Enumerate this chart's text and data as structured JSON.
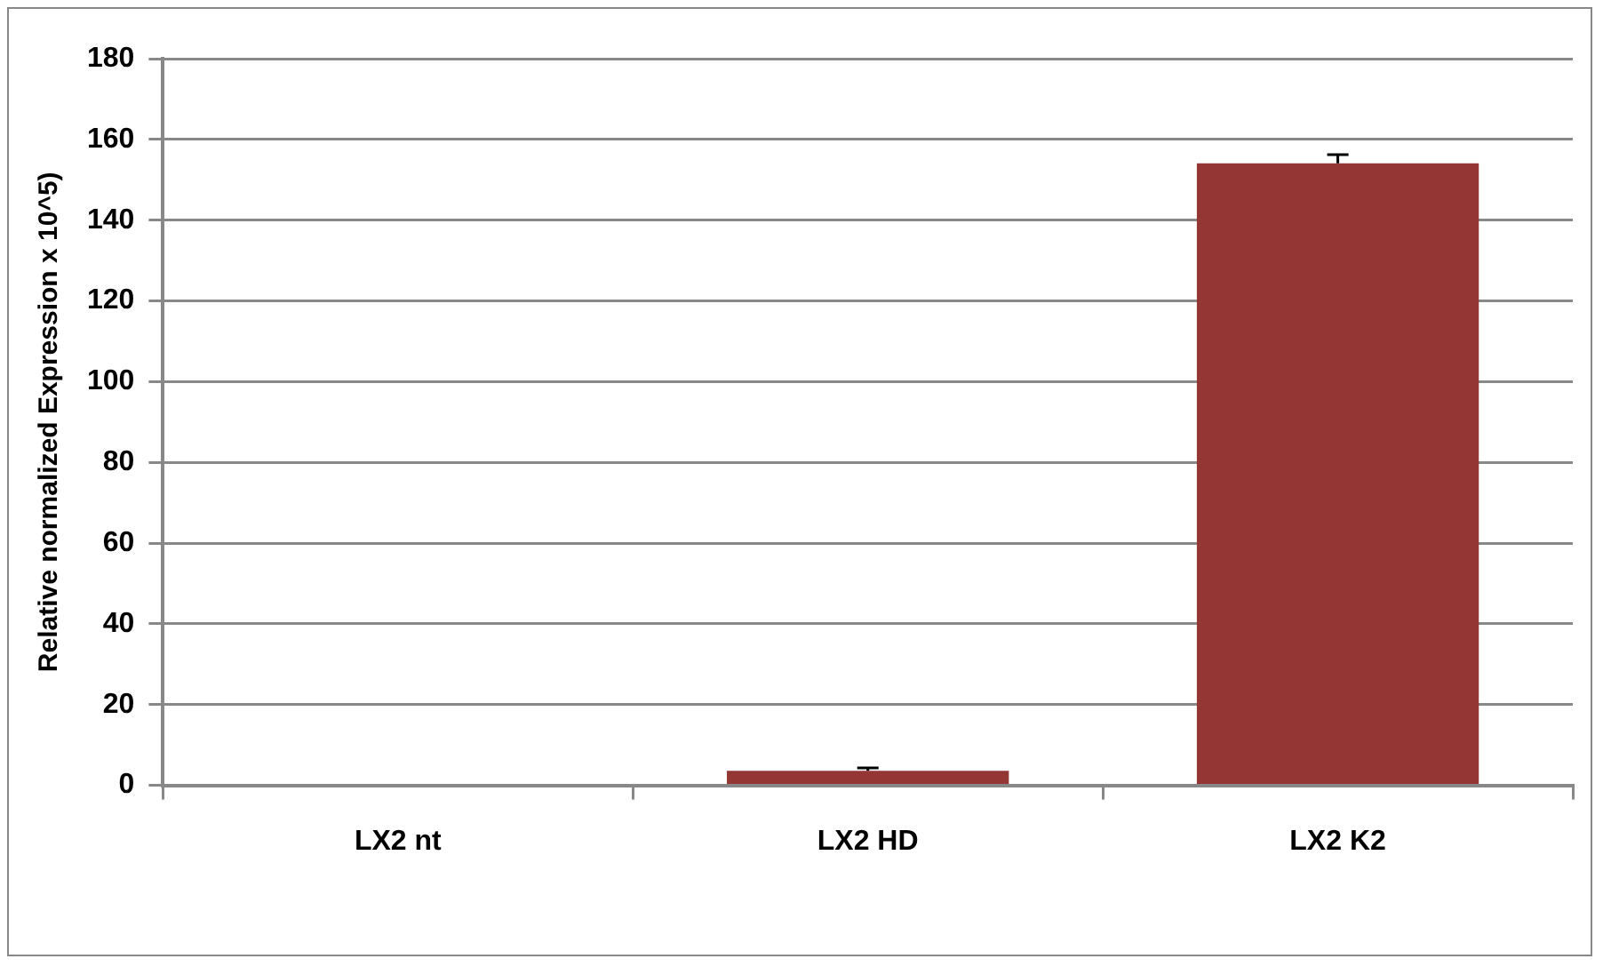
{
  "chart_data": {
    "type": "bar",
    "ylabel": "Relative normalized Expression x 10^5)",
    "categories": [
      "LX2 nt",
      "LX2 HD",
      "LX2 K2"
    ],
    "values": [
      0,
      3.6,
      154.1
    ],
    "errors": [
      null,
      0.7,
      2.1
    ],
    "color": "#943634",
    "ylim": [
      0,
      180
    ],
    "yticks": [
      0,
      20,
      40,
      60,
      80,
      100,
      120,
      140,
      160,
      180
    ],
    "grid": "y",
    "legend": false
  }
}
